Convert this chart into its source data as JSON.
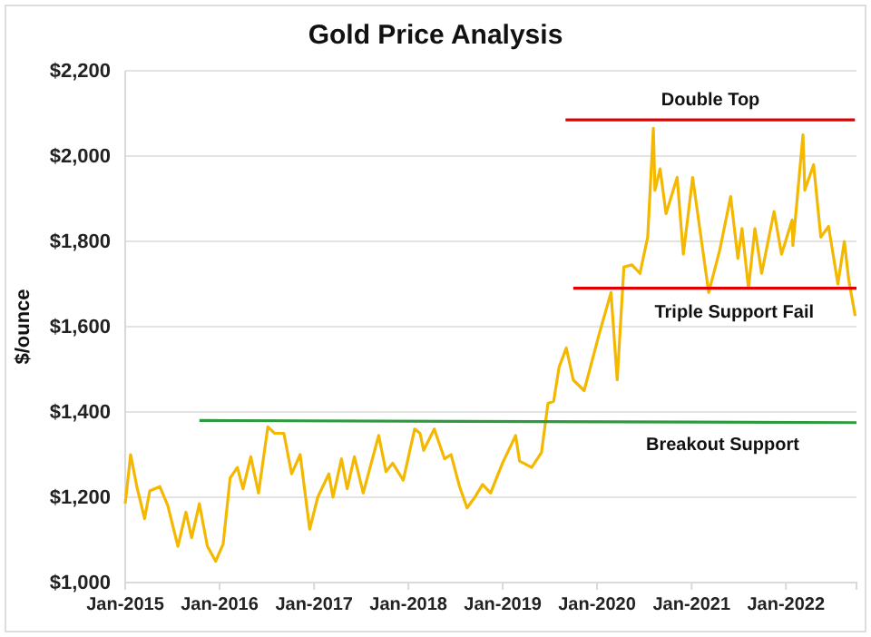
{
  "chart_data": {
    "type": "line",
    "title": "Gold Price Analysis",
    "ylabel": "$/ounce",
    "xlim": [
      "2015-01-01",
      "2022-10-01"
    ],
    "xticks": [
      {
        "value": "2015-01-01",
        "label": "Jan-2015"
      },
      {
        "value": "2016-01-01",
        "label": "Jan-2016"
      },
      {
        "value": "2017-01-01",
        "label": "Jan-2017"
      },
      {
        "value": "2018-01-01",
        "label": "Jan-2018"
      },
      {
        "value": "2019-01-01",
        "label": "Jan-2019"
      },
      {
        "value": "2020-01-01",
        "label": "Jan-2020"
      },
      {
        "value": "2021-01-01",
        "label": "Jan-2021"
      },
      {
        "value": "2022-01-01",
        "label": "Jan-2022"
      }
    ],
    "ylim": [
      1000,
      2200
    ],
    "yticks": [
      {
        "value": 1000,
        "label": "$1,000"
      },
      {
        "value": 1200,
        "label": "$1,200"
      },
      {
        "value": 1400,
        "label": "$1,400"
      },
      {
        "value": 1600,
        "label": "$1,600"
      },
      {
        "value": 1800,
        "label": "$1,800"
      },
      {
        "value": 2000,
        "label": "$2,000"
      },
      {
        "value": 2200,
        "label": "$2,200"
      }
    ],
    "grid": "y",
    "marker": "none",
    "line_style": "solid",
    "series": [
      {
        "color": "#f5b800",
        "x": [
          "2015-01-01",
          "2015-01-22",
          "2015-02-15",
          "2015-03-17",
          "2015-04-06",
          "2015-05-15",
          "2015-06-15",
          "2015-07-24",
          "2015-08-24",
          "2015-09-15",
          "2015-10-15",
          "2015-11-15",
          "2015-12-17",
          "2016-01-15",
          "2016-02-11",
          "2016-03-10",
          "2016-04-01",
          "2016-05-01",
          "2016-05-31",
          "2016-07-06",
          "2016-08-01",
          "2016-09-06",
          "2016-10-06",
          "2016-11-08",
          "2016-12-15",
          "2017-01-15",
          "2017-02-27",
          "2017-03-15",
          "2017-04-17",
          "2017-05-09",
          "2017-06-06",
          "2017-07-10",
          "2017-09-08",
          "2017-10-06",
          "2017-11-01",
          "2017-12-12",
          "2018-01-25",
          "2018-02-15",
          "2018-03-01",
          "2018-04-11",
          "2018-05-21",
          "2018-06-15",
          "2018-07-18",
          "2018-08-16",
          "2018-09-15",
          "2018-10-15",
          "2018-11-15",
          "2018-12-31",
          "2019-02-20",
          "2019-03-07",
          "2019-04-23",
          "2019-05-31",
          "2019-06-25",
          "2019-07-17",
          "2019-08-07",
          "2019-09-04",
          "2019-10-01",
          "2019-11-12",
          "2020-01-08",
          "2020-02-24",
          "2020-03-19",
          "2020-04-14",
          "2020-05-15",
          "2020-06-15",
          "2020-07-15",
          "2020-08-06",
          "2020-08-12",
          "2020-09-01",
          "2020-09-24",
          "2020-11-06",
          "2020-11-30",
          "2021-01-05",
          "2021-03-08",
          "2021-04-20",
          "2021-06-01",
          "2021-06-29",
          "2021-07-15",
          "2021-08-09",
          "2021-09-03",
          "2021-09-29",
          "2021-11-16",
          "2021-12-15",
          "2022-01-25",
          "2022-01-28",
          "2022-03-08",
          "2022-03-15",
          "2022-04-18",
          "2022-05-16",
          "2022-06-15",
          "2022-07-21",
          "2022-08-15",
          "2022-09-01",
          "2022-09-26"
        ],
        "values": [
          1185,
          1300,
          1225,
          1150,
          1215,
          1225,
          1180,
          1085,
          1165,
          1105,
          1185,
          1085,
          1050,
          1090,
          1245,
          1270,
          1220,
          1295,
          1210,
          1365,
          1350,
          1350,
          1255,
          1300,
          1125,
          1200,
          1255,
          1200,
          1290,
          1220,
          1295,
          1210,
          1345,
          1260,
          1280,
          1240,
          1360,
          1350,
          1310,
          1360,
          1290,
          1300,
          1225,
          1175,
          1200,
          1230,
          1210,
          1280,
          1345,
          1285,
          1270,
          1305,
          1420,
          1425,
          1505,
          1550,
          1475,
          1450,
          1580,
          1680,
          1475,
          1740,
          1745,
          1725,
          1810,
          2065,
          1920,
          1970,
          1865,
          1950,
          1770,
          1950,
          1680,
          1780,
          1905,
          1760,
          1830,
          1690,
          1830,
          1725,
          1870,
          1770,
          1850,
          1790,
          2050,
          1920,
          1980,
          1810,
          1835,
          1700,
          1800,
          1710,
          1625
        ]
      },
      {
        "color": "#2e9a3e",
        "x": [
          "2015-10-15",
          "2022-10-01"
        ],
        "values": [
          1380,
          1375
        ]
      },
      {
        "color": "#e00000",
        "x": [
          "2019-09-01",
          "2022-09-25"
        ],
        "values": [
          2085,
          2085
        ]
      },
      {
        "color": "#e00000",
        "x": [
          "2019-10-01",
          "2022-10-01"
        ],
        "values": [
          1690,
          1690
        ]
      }
    ],
    "annotations": [
      {
        "text": "Double Top",
        "x": "2021-03-15",
        "y": 2085
      },
      {
        "text": "Triple Support Fail",
        "x": "2021-06-15",
        "y": 1690
      },
      {
        "text": "Breakout Support",
        "x": "2021-05-01",
        "y": 1378
      }
    ]
  }
}
